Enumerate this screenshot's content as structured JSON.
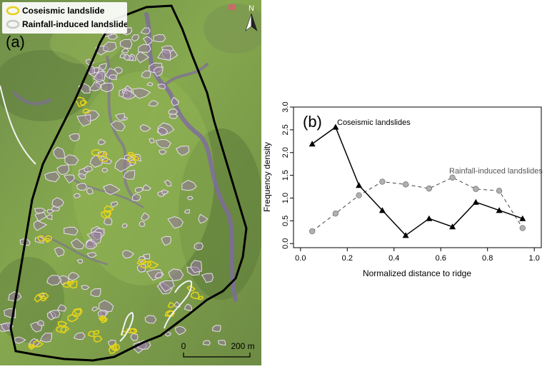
{
  "map": {
    "panel_label": "(a)",
    "legend": {
      "coseismic": "Coseismic landslide",
      "rainfall": "Rainfall-induced landslide"
    },
    "north_label": "N",
    "scale_zero": "0",
    "scale_max": "200 m",
    "colors": {
      "coseismic": "#e6d21a",
      "rainfall": "#e6e0ea",
      "boundary": "#000000"
    }
  },
  "chart_data": {
    "type": "line",
    "panel_label": "(b)",
    "xlabel": "Normalized distance to ridge",
    "ylabel": "Frequency density",
    "xlim": [
      -0.03,
      1.03
    ],
    "ylim": [
      -0.09,
      3.0
    ],
    "xticks": [
      "0.0",
      "0.2",
      "0.4",
      "0.6",
      "0.8",
      "1.0"
    ],
    "yticks": [
      "0.0",
      "0.5",
      "1.0",
      "1.5",
      "2.0",
      "2.5",
      "3.0"
    ],
    "grid": false,
    "series": [
      {
        "name": "Coseismic landslides",
        "marker": "triangle",
        "line": "solid",
        "color": "#000000",
        "x": [
          0.05,
          0.15,
          0.25,
          0.35,
          0.45,
          0.55,
          0.65,
          0.75,
          0.85,
          0.95
        ],
        "y": [
          2.19,
          2.56,
          1.28,
          0.73,
          0.18,
          0.55,
          0.37,
          0.91,
          0.73,
          0.55
        ]
      },
      {
        "name": "Rainfall-induced landslides",
        "marker": "circle",
        "line": "dashed",
        "color": "#8a8a8a",
        "x": [
          0.05,
          0.15,
          0.25,
          0.35,
          0.45,
          0.55,
          0.65,
          0.75,
          0.85,
          0.95
        ],
        "y": [
          0.27,
          0.66,
          1.06,
          1.36,
          1.3,
          1.21,
          1.45,
          1.2,
          1.16,
          0.34
        ]
      }
    ]
  }
}
